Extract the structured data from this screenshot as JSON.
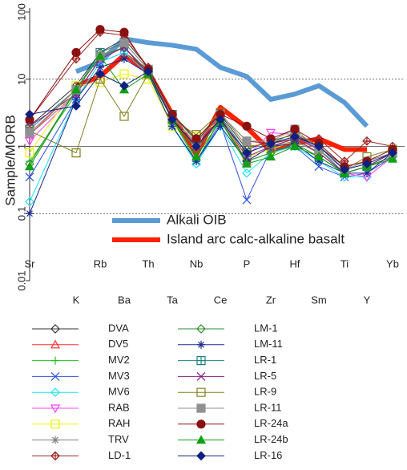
{
  "chart_data": {
    "type": "line",
    "ylabel": "Sample/MORB",
    "log_scale": true,
    "grid": true,
    "categories": [
      "Sr",
      "K",
      "Rb",
      "Ba",
      "Th",
      "Ta",
      "Nb",
      "Ce",
      "P",
      "Zr",
      "Hf",
      "Sm",
      "Ti",
      "Y",
      "Yb"
    ],
    "ylim": [
      0.01,
      100
    ],
    "yticks": [
      0.01,
      0.1,
      1,
      10,
      100
    ],
    "reference_series": [
      {
        "name": "Alkali OIB",
        "color": "#5b9bd5",
        "values": [
          null,
          13,
          18,
          40,
          35,
          32,
          28,
          15,
          11,
          5,
          6,
          8,
          4.5,
          2,
          null
        ]
      },
      {
        "name": "Island arc calc-alkaline basalt",
        "color": "#ff2000",
        "values": [
          null,
          8,
          11,
          23,
          13,
          3,
          0.75,
          3.8,
          1.9,
          0.85,
          1.1,
          1.3,
          0.9,
          0.9,
          null
        ]
      }
    ],
    "series": [
      {
        "name": "DVA",
        "color": "#333333",
        "marker": "diamond",
        "values": [
          2,
          8,
          25,
          40,
          15,
          3,
          1.3,
          3,
          0.9,
          1.2,
          1.5,
          1.0,
          0.5,
          0.6,
          0.8
        ]
      },
      {
        "name": "DV5",
        "color": "#ff3030",
        "marker": "triangle",
        "values": [
          1.5,
          7,
          22,
          35,
          14,
          3,
          1.0,
          2.8,
          0.6,
          1.0,
          1.3,
          0.9,
          0.4,
          0.5,
          0.8
        ]
      },
      {
        "name": "MV2",
        "color": "#20c020",
        "marker": "plus",
        "values": [
          0.6,
          6,
          20,
          30,
          12,
          2.5,
          0.6,
          2.5,
          0.6,
          0.8,
          1.1,
          0.7,
          0.4,
          0.5,
          0.7
        ]
      },
      {
        "name": "MV3",
        "color": "#3050e0",
        "marker": "cross",
        "values": [
          0.35,
          5,
          18,
          25,
          12,
          2,
          0.6,
          2.2,
          0.16,
          0.9,
          1.0,
          0.5,
          0.35,
          0.4,
          0.7
        ]
      },
      {
        "name": "MV6",
        "color": "#20e0f0",
        "marker": "diamond",
        "values": [
          0.15,
          5,
          18,
          25,
          12,
          2,
          0.55,
          2.0,
          0.4,
          0.8,
          1.0,
          0.6,
          0.35,
          0.35,
          0.7
        ]
      },
      {
        "name": "RAB",
        "color": "#ff40ff",
        "marker": "down",
        "values": [
          1.2,
          6,
          20,
          30,
          13,
          2.5,
          1.0,
          2.5,
          0.7,
          1.6,
          1.5,
          0.9,
          0.4,
          0.35,
          0.7
        ]
      },
      {
        "name": "RAH",
        "color": "#f0f000",
        "marker": "square",
        "values": [
          0.8,
          8,
          9,
          12,
          10,
          2,
          1.4,
          2.4,
          0.7,
          0.9,
          1.2,
          0.8,
          0.4,
          0.5,
          0.8
        ]
      },
      {
        "name": "TRV",
        "color": "#808080",
        "marker": "star",
        "values": [
          1.5,
          6,
          20,
          30,
          12,
          2.5,
          1.0,
          2.5,
          0.6,
          1.0,
          1.2,
          0.8,
          0.4,
          0.5,
          0.7
        ]
      },
      {
        "name": "LD-1",
        "color": "#a02020",
        "marker": "diamondplus",
        "values": [
          2.5,
          20,
          50,
          45,
          15,
          3,
          1.2,
          3,
          1.2,
          1.1,
          1.3,
          1.3,
          0.6,
          1.2,
          1.0
        ]
      },
      {
        "name": "LM-1",
        "color": "#2e8b2e",
        "marker": "diamond",
        "values": [
          0.55,
          7,
          22,
          30,
          13,
          2.5,
          0.9,
          2.4,
          0.6,
          0.8,
          1.1,
          0.7,
          0.4,
          0.5,
          0.7
        ]
      },
      {
        "name": "LM-11",
        "color": "#1a2a90",
        "marker": "star",
        "values": [
          0.1,
          5,
          15,
          20,
          12,
          2,
          0.6,
          2,
          0.6,
          1.0,
          1.1,
          0.6,
          0.4,
          0.4,
          0.8
        ]
      },
      {
        "name": "LR-1",
        "color": "#208080",
        "marker": "squareplus",
        "values": [
          1.8,
          7,
          25,
          35,
          14,
          3,
          1.2,
          2.8,
          0.8,
          1.1,
          1.4,
          0.9,
          0.4,
          0.5,
          0.8
        ]
      },
      {
        "name": "LR-5",
        "color": "#802080",
        "marker": "cross",
        "values": [
          2,
          6,
          20,
          30,
          12,
          2.5,
          1.0,
          2.6,
          0.7,
          1.0,
          1.3,
          0.8,
          0.4,
          0.5,
          0.8
        ]
      },
      {
        "name": "LR-9",
        "color": "#808020",
        "marker": "square",
        "values": [
          1.7,
          0.8,
          10,
          2.8,
          12,
          2.5,
          1.5,
          3.2,
          1.0,
          1.1,
          1.6,
          1.0,
          0.45,
          0.7,
          0.9
        ]
      },
      {
        "name": "LR-11",
        "color": "#909090",
        "marker": "filledsquare",
        "values": [
          1.6,
          7,
          22,
          35,
          14,
          2.8,
          1.1,
          3,
          1.2,
          1.2,
          1.8,
          0.9,
          0.45,
          0.6,
          0.8
        ]
      },
      {
        "name": "LR-24a",
        "color": "#8b1010",
        "marker": "circle",
        "values": [
          2.5,
          25,
          55,
          50,
          14,
          3,
          1.3,
          3,
          2,
          1.3,
          1.8,
          1.1,
          0.5,
          0.6,
          0.9
        ]
      },
      {
        "name": "LR-24b",
        "color": "#10a010",
        "marker": "filledtriangle",
        "values": [
          0.5,
          7,
          22,
          7,
          12,
          2.5,
          0.7,
          2.4,
          0.55,
          0.7,
          1.0,
          0.7,
          0.4,
          0.5,
          0.65
        ]
      },
      {
        "name": "LR-16",
        "color": "#102080",
        "marker": "filleddiamond",
        "values": [
          3,
          4,
          12,
          8,
          13,
          2.5,
          1.0,
          2.5,
          0.8,
          1.1,
          1.4,
          1.0,
          0.45,
          0.55,
          0.8
        ]
      }
    ]
  }
}
